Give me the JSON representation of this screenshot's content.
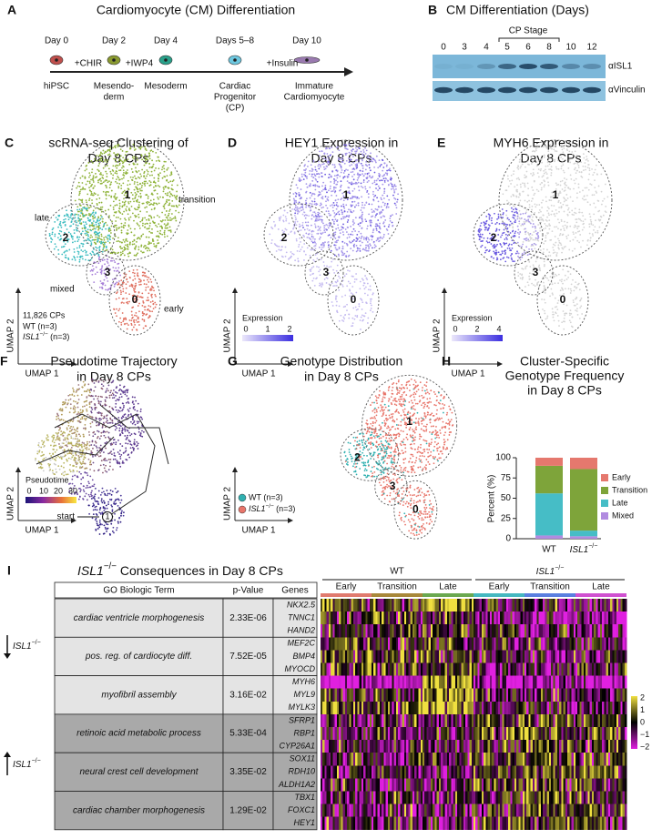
{
  "panel_a": {
    "label": "A",
    "title": "Cardiomyocyte (CM) Differentiation",
    "days": [
      "Day 0",
      "Day 2",
      "Day 4",
      "Days 5–8",
      "Day 10"
    ],
    "treatments": [
      "+CHIR",
      "+IWP4",
      "+Insulin"
    ],
    "stages": [
      [
        "hiPSC"
      ],
      [
        "Mesendo-",
        "derm"
      ],
      [
        "Mesoderm"
      ],
      [
        "Cardiac",
        "Progenitor",
        "(CP)"
      ],
      [
        "Immature",
        "Cardiomyocyte"
      ]
    ]
  },
  "panel_b": {
    "label": "B",
    "title": "CM Differentiation (Days)",
    "bracket": "CP Stage",
    "days": [
      "0",
      "3",
      "4",
      "5",
      "6",
      "8",
      "10",
      "12"
    ],
    "blots": [
      "αISL1",
      "αVinculin"
    ]
  },
  "panel_c": {
    "label": "C",
    "title": [
      "scRNA-seq Clustering of",
      "Day 8 CPs"
    ],
    "clusters": [
      "1",
      "2",
      "3",
      "0"
    ],
    "cluster_names": [
      "transition",
      "late",
      "mixed",
      "early"
    ],
    "x_axis": "UMAP 1",
    "y_axis": "UMAP 2",
    "legend": [
      "11,826 CPs",
      "WT (n=3)",
      "ISL1−/− (n=3)"
    ]
  },
  "panel_d": {
    "label": "D",
    "title": [
      "HEY1 Expression in",
      "Day 8 CPs"
    ],
    "clusters": [
      "1",
      "2",
      "3",
      "0"
    ],
    "x_axis": "UMAP 1",
    "y_axis": "UMAP 2",
    "scale_title": "Expression",
    "scale_ticks": [
      "0",
      "1",
      "2"
    ]
  },
  "panel_e": {
    "label": "E",
    "title": [
      "MYH6 Expression in",
      "Day 8 CPs"
    ],
    "clusters": [
      "1",
      "2",
      "3",
      "0"
    ],
    "x_axis": "UMAP 1",
    "y_axis": "UMAP 2",
    "scale_title": "Expression",
    "scale_ticks": [
      "0",
      "2",
      "4"
    ]
  },
  "panel_f": {
    "label": "F",
    "title": [
      "Pseudotime Trajectory",
      "in Day 8 CPs"
    ],
    "x_axis": "UMAP 1",
    "y_axis": "UMAP 2",
    "scale_title": "Pseudotime",
    "scale_ticks": [
      "0",
      "10",
      "20",
      "30"
    ],
    "start": "start",
    "start_node": "1"
  },
  "panel_g": {
    "label": "G",
    "title": [
      "Genotype Distribution",
      "in Day 8 CPs"
    ],
    "clusters": [
      "1",
      "2",
      "3",
      "0"
    ],
    "x_axis": "UMAP 1",
    "y_axis": "UMAP 2",
    "legend": [
      "WT (n=3)",
      "ISL1−/− (n=3)"
    ]
  },
  "chart_data": {
    "type": "bar",
    "stacked": true,
    "panel_label": "H",
    "title": [
      "Cluster-Specific",
      "Genotype Frequency",
      "in Day 8 CPs"
    ],
    "ylabel": "Percent (%)",
    "categories": [
      "WT",
      "ISL1−/−"
    ],
    "series": [
      {
        "name": "Mixed",
        "color": "#b18be0",
        "values": [
          4,
          3
        ]
      },
      {
        "name": "Late",
        "color": "#46bdc6",
        "values": [
          52,
          7
        ]
      },
      {
        "name": "Transition",
        "color": "#7ea43a",
        "values": [
          34,
          76
        ]
      },
      {
        "name": "Early",
        "color": "#e5786e",
        "values": [
          10,
          14
        ]
      }
    ],
    "ylim": [
      0,
      100
    ],
    "yticks": [
      0,
      25,
      50,
      75,
      100
    ]
  },
  "panel_i": {
    "label": "I",
    "title": "ISL1−/− Consequences in Day 8 CPs",
    "headers": [
      "GO Biologic Term",
      "p-Value",
      "Genes"
    ],
    "rows": [
      {
        "term": "cardiac ventricle morphogenesis",
        "p_value": "2.33E-06",
        "genes": [
          "NKX2.5",
          "TNNC1",
          "HAND2"
        ]
      },
      {
        "term": "pos. reg. of cardiocyte diff.",
        "p_value": "7.52E-05",
        "genes": [
          "MEF2C",
          "BMP4",
          "MYOCD"
        ]
      },
      {
        "term": "myofibril assembly",
        "p_value": "3.16E-02",
        "genes": [
          "MYH6",
          "MYL9",
          "MYLK3"
        ]
      },
      {
        "term": "retinoic acid metabolic process",
        "p_value": "5.33E-04",
        "genes": [
          "SFRP1",
          "RBP1",
          "CYP26A1"
        ]
      },
      {
        "term": "neural crest cell development",
        "p_value": "3.35E-02",
        "genes": [
          "SOX11",
          "RDH10",
          "ALDH1A2"
        ]
      },
      {
        "term": "cardiac chamber morphogenesis",
        "p_value": "1.29E-02",
        "genes": [
          "TBX1",
          "FOXC1",
          "HEY1"
        ]
      }
    ],
    "direction_labels": [
      "ISL1−/−",
      "ISL1−/−"
    ],
    "groups": [
      "WT",
      "ISL1−/−"
    ],
    "subgroups": [
      [
        "Early",
        "Transition",
        "Late"
      ],
      [
        "Early",
        "Transition",
        "Late"
      ]
    ],
    "scale_ticks": [
      "2",
      "1",
      "0",
      "−1",
      "−2"
    ]
  }
}
